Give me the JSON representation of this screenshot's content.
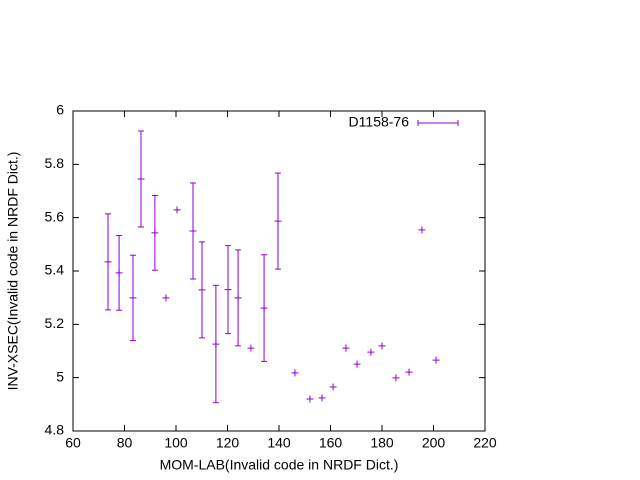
{
  "chart_data": {
    "type": "scatter",
    "x_label": "MOM-LAB(Invalid code in NRDF Dict.)",
    "y_label": "INV-XSEC(Invalid code in NRDF Dict.)",
    "xlim": [
      60,
      220
    ],
    "xticks": [
      60,
      80,
      100,
      120,
      140,
      160,
      180,
      200,
      220
    ],
    "ylim": [
      4.8,
      6
    ],
    "yticks": [
      4.8,
      5,
      5.2,
      5.4,
      5.6,
      5.8,
      6
    ],
    "legend": "top-right",
    "series": [
      {
        "name": "D1158-76",
        "color": "#9400d3",
        "x": [
          73.6,
          77.9,
          83.3,
          86.4,
          91.8,
          96.1,
          100.4,
          106.6,
          110.1,
          115.5,
          120.2,
          124.1,
          129.1,
          134.2,
          139.6,
          146.2,
          152.0,
          156.7,
          161.0,
          166.0,
          170.3,
          175.7,
          180.0,
          185.4,
          190.5,
          195.5,
          201.0
        ],
        "y": [
          5.434,
          5.393,
          5.299,
          5.745,
          5.543,
          5.299,
          5.629,
          5.55,
          5.329,
          5.126,
          5.33,
          5.299,
          5.111,
          5.261,
          5.587,
          5.018,
          4.92,
          4.924,
          4.965,
          5.111,
          5.051,
          5.096,
          5.119,
          4.999,
          5.021,
          5.554,
          5.066
        ],
        "errors": [
          0.18,
          0.14,
          0.16,
          0.18,
          0.14,
          null,
          null,
          0.18,
          0.18,
          0.22,
          0.165,
          0.18,
          null,
          0.2,
          0.18,
          null,
          null,
          null,
          null,
          null,
          null,
          null,
          null,
          null,
          null,
          null,
          null
        ]
      }
    ]
  }
}
